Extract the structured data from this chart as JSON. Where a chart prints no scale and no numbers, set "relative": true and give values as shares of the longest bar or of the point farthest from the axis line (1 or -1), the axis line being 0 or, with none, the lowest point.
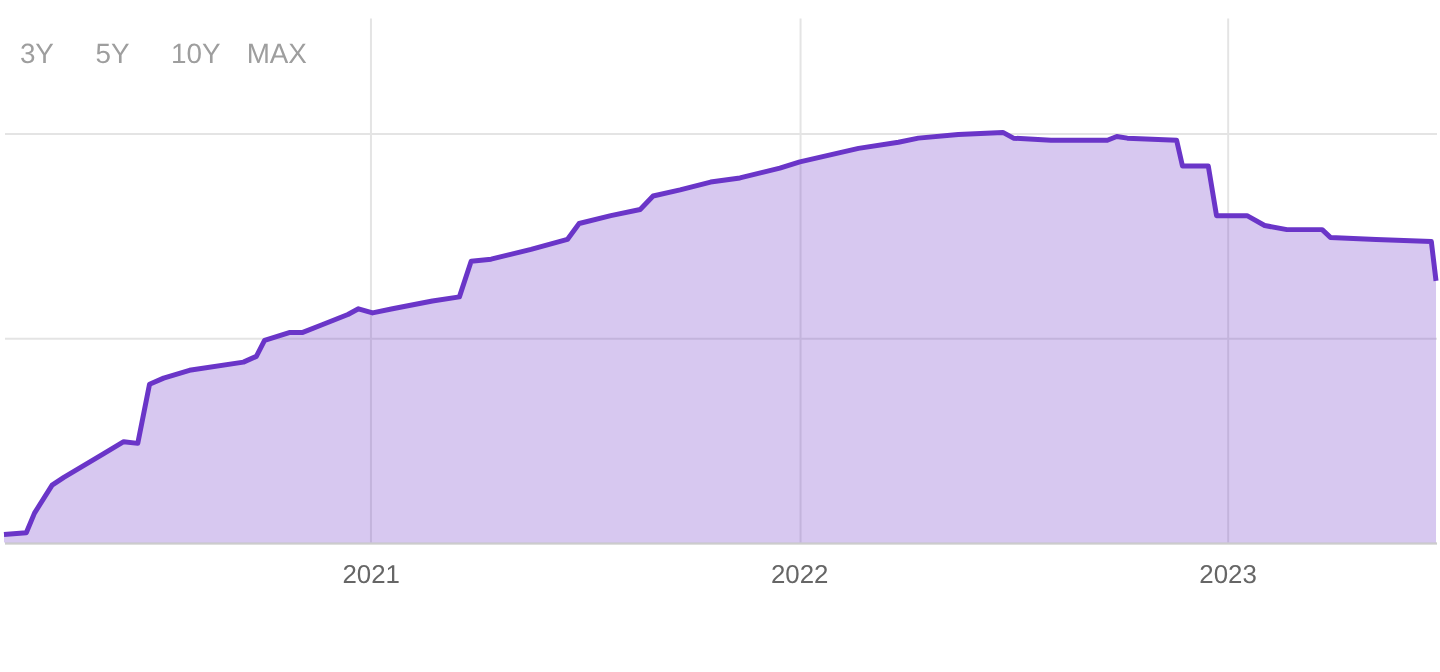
{
  "chart_data": {
    "type": "area",
    "relative": true,
    "grid": true,
    "annotations": [
      "3Y",
      "5Y",
      "10Y",
      "MAX"
    ],
    "xlim": [
      "2020-02-24",
      "2023-06-28"
    ],
    "xticks": [
      {
        "value": "2021-01-01",
        "label": "2021"
      },
      {
        "value": "2022-01-01",
        "label": "2022"
      },
      {
        "value": "2023-01-01",
        "label": "2023"
      }
    ],
    "x": [
      "2020-02-24",
      "2020-03-14",
      "2020-03-21",
      "2020-04-05",
      "2020-04-15",
      "2020-05-19",
      "2020-06-05",
      "2020-06-17",
      "2020-06-27",
      "2020-07-09",
      "2020-07-31",
      "2020-09-15",
      "2020-09-26",
      "2020-10-03",
      "2020-10-24",
      "2020-11-04",
      "2020-11-21",
      "2020-12-13",
      "2020-12-22",
      "2021-01-03",
      "2021-01-20",
      "2021-02-23",
      "2021-03-18",
      "2021-03-28",
      "2021-04-14",
      "2021-05-18",
      "2021-06-18",
      "2021-06-28",
      "2021-07-25",
      "2021-08-19",
      "2021-08-30",
      "2021-09-22",
      "2021-10-18",
      "2021-11-12",
      "2021-12-16",
      "2022-01-02",
      "2022-02-21",
      "2022-03-27",
      "2022-04-13",
      "2022-05-17",
      "2022-06-24",
      "2022-07-03",
      "2022-08-04",
      "2022-09-21",
      "2022-09-29",
      "2022-10-08",
      "2022-11-19",
      "2022-11-24",
      "2022-12-16",
      "2022-12-23",
      "2023-01-18",
      "2023-02-02",
      "2023-02-21",
      "2023-03-23",
      "2023-03-30",
      "2023-05-08",
      "2023-06-24",
      "2023-06-28"
    ],
    "series": [
      {
        "color": "#6a35c8",
        "values": [
          0.02,
          0.024,
          0.072,
          0.14,
          0.159,
          0.217,
          0.246,
          0.242,
          0.386,
          0.401,
          0.42,
          0.44,
          0.454,
          0.493,
          0.512,
          0.512,
          0.531,
          0.556,
          0.57,
          0.56,
          0.57,
          0.589,
          0.599,
          0.686,
          0.691,
          0.715,
          0.739,
          0.778,
          0.797,
          0.812,
          0.845,
          0.86,
          0.879,
          0.889,
          0.913,
          0.928,
          0.961,
          0.976,
          0.986,
          0.995,
          1.0,
          0.986,
          0.981,
          0.981,
          0.99,
          0.986,
          0.981,
          0.918,
          0.918,
          0.797,
          0.797,
          0.773,
          0.763,
          0.763,
          0.744,
          0.739,
          0.734,
          0.638
        ]
      }
    ]
  }
}
